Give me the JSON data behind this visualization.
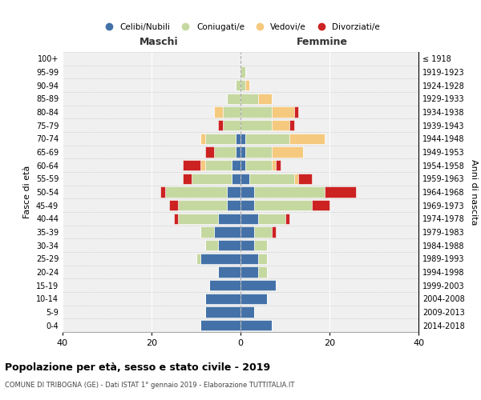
{
  "age_groups": [
    "0-4",
    "5-9",
    "10-14",
    "15-19",
    "20-24",
    "25-29",
    "30-34",
    "35-39",
    "40-44",
    "45-49",
    "50-54",
    "55-59",
    "60-64",
    "65-69",
    "70-74",
    "75-79",
    "80-84",
    "85-89",
    "90-94",
    "95-99",
    "100+"
  ],
  "birth_years": [
    "2014-2018",
    "2009-2013",
    "2004-2008",
    "1999-2003",
    "1994-1998",
    "1989-1993",
    "1984-1988",
    "1979-1983",
    "1974-1978",
    "1969-1973",
    "1964-1968",
    "1959-1963",
    "1954-1958",
    "1949-1953",
    "1944-1948",
    "1939-1943",
    "1934-1938",
    "1929-1933",
    "1924-1928",
    "1919-1923",
    "≤ 1918"
  ],
  "males": {
    "celibi": [
      9,
      8,
      8,
      7,
      5,
      9,
      5,
      6,
      5,
      3,
      3,
      2,
      2,
      1,
      1,
      0,
      0,
      0,
      0,
      0,
      0
    ],
    "coniugati": [
      0,
      0,
      0,
      0,
      0,
      1,
      3,
      3,
      9,
      11,
      14,
      9,
      6,
      5,
      7,
      4,
      4,
      3,
      1,
      0,
      0
    ],
    "vedovi": [
      0,
      0,
      0,
      0,
      0,
      0,
      0,
      0,
      0,
      0,
      0,
      0,
      1,
      0,
      1,
      0,
      2,
      0,
      0,
      0,
      0
    ],
    "divorziati": [
      0,
      0,
      0,
      0,
      0,
      0,
      0,
      0,
      1,
      2,
      1,
      2,
      4,
      2,
      0,
      1,
      0,
      0,
      0,
      0,
      0
    ]
  },
  "females": {
    "nubili": [
      7,
      3,
      6,
      8,
      4,
      4,
      3,
      3,
      4,
      3,
      3,
      2,
      1,
      1,
      1,
      0,
      0,
      0,
      0,
      0,
      0
    ],
    "coniugate": [
      0,
      0,
      0,
      0,
      2,
      2,
      3,
      4,
      6,
      13,
      16,
      10,
      6,
      6,
      10,
      7,
      7,
      4,
      1,
      1,
      0
    ],
    "vedove": [
      0,
      0,
      0,
      0,
      0,
      0,
      0,
      0,
      0,
      0,
      0,
      1,
      1,
      7,
      8,
      4,
      5,
      3,
      1,
      0,
      0
    ],
    "divorziate": [
      0,
      0,
      0,
      0,
      0,
      0,
      0,
      1,
      1,
      4,
      7,
      3,
      1,
      0,
      0,
      1,
      1,
      0,
      0,
      0,
      0
    ]
  },
  "colors": {
    "celibi": "#4472a8",
    "coniugati": "#c5d8a0",
    "vedovi": "#f5c97e",
    "divorziati": "#cc2222"
  },
  "xlim": [
    -40,
    40
  ],
  "xticks": [
    -40,
    -20,
    0,
    20,
    40
  ],
  "xticklabels": [
    "40",
    "20",
    "0",
    "20",
    "40"
  ],
  "title": "Popolazione per età, sesso e stato civile - 2019",
  "subtitle": "COMUNE DI TRIBOGNA (GE) - Dati ISTAT 1° gennaio 2019 - Elaborazione TUTTITALIA.IT",
  "ylabel_left": "Fasce di età",
  "ylabel_right": "Anni di nascita",
  "label_maschi": "Maschi",
  "label_femmine": "Femmine",
  "legend_labels": [
    "Celibi/Nubili",
    "Coniugati/e",
    "Vedovi/e",
    "Divorziati/e"
  ],
  "bg_color": "#f0f0f0",
  "bar_edge_color": "white",
  "bar_height": 0.8
}
